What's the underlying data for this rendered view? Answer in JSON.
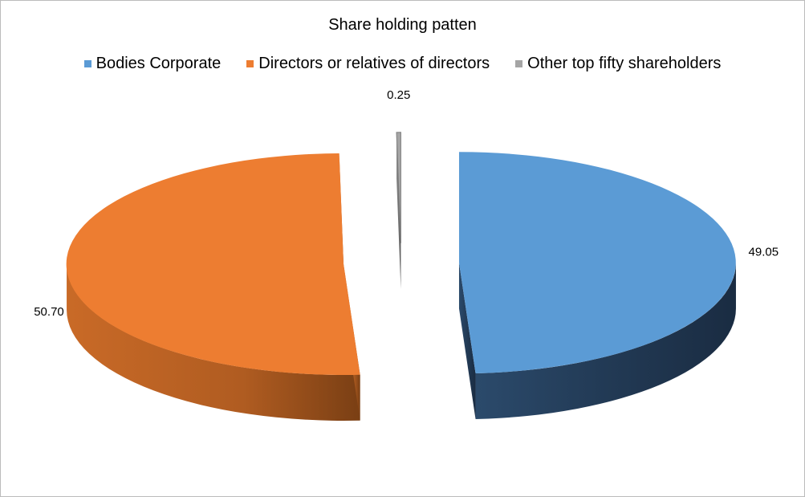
{
  "chart_data": {
    "type": "pie",
    "title": "Share holding patten",
    "legend_position": "top",
    "exploded": true,
    "style": "3d",
    "categories": [
      "Bodies Corporate",
      "Directors or relatives of directors",
      "Other top fifty shareholders"
    ],
    "values": [
      49.05,
      50.7,
      0.25
    ],
    "value_labels": [
      "49.05",
      "50.70",
      "0.25"
    ],
    "colors": [
      "#5b9bd5",
      "#ed7d31",
      "#a5a5a5"
    ]
  }
}
